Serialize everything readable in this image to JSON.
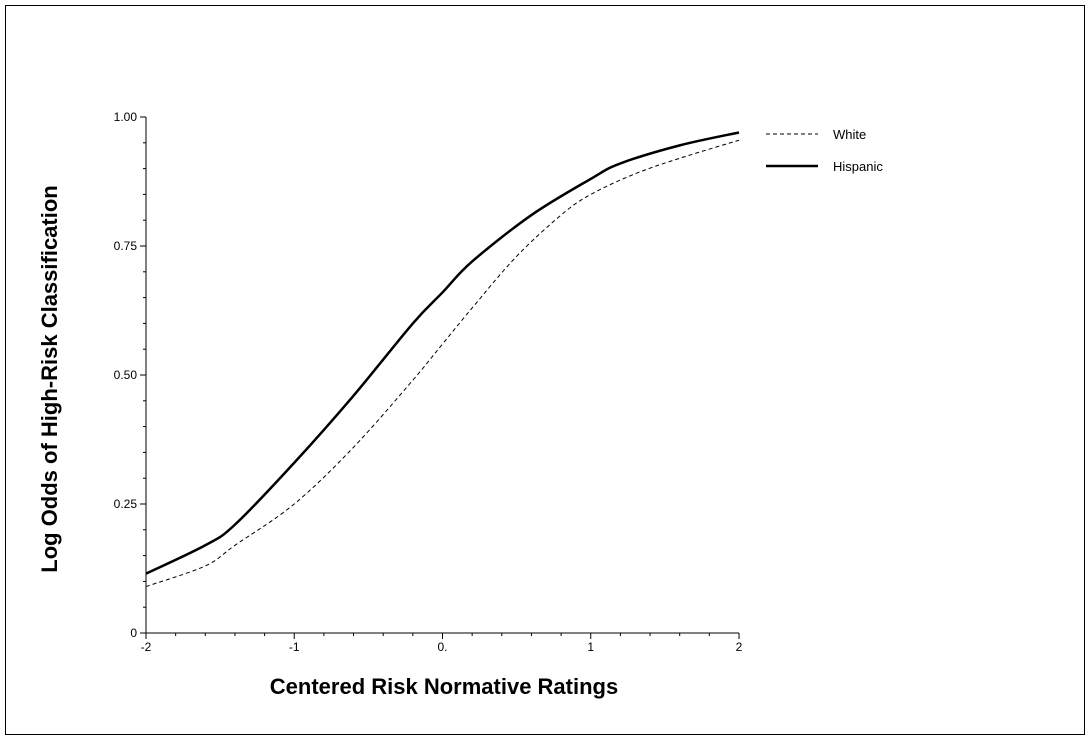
{
  "chart_data": {
    "type": "line",
    "title": "",
    "xlabel": "Centered Risk Normative Ratings",
    "ylabel": "Log Odds of High-Risk Classification",
    "xlim": [
      -2,
      2
    ],
    "ylim": [
      0,
      1
    ],
    "x_ticks": [
      {
        "value": -2,
        "label": "-2"
      },
      {
        "value": -1,
        "label": "-1"
      },
      {
        "value": 0,
        "label": "0."
      },
      {
        "value": 1,
        "label": "1"
      },
      {
        "value": 2,
        "label": "2"
      }
    ],
    "y_ticks": [
      {
        "value": 0,
        "label": "0"
      },
      {
        "value": 0.25,
        "label": "0.25"
      },
      {
        "value": 0.5,
        "label": "0.50"
      },
      {
        "value": 0.75,
        "label": "0.75"
      },
      {
        "value": 1,
        "label": "1.00"
      }
    ],
    "grid": false,
    "legend_position": "top-right",
    "series": [
      {
        "name": "White",
        "style": "dashed",
        "color": "#000000",
        "x": [
          -2.0,
          -1.6,
          -1.4,
          -1.0,
          -0.6,
          -0.2,
          0.0,
          0.2,
          0.5,
          0.8,
          1.0,
          1.3,
          1.6,
          2.0
        ],
        "y": [
          0.09,
          0.13,
          0.17,
          0.25,
          0.36,
          0.49,
          0.56,
          0.63,
          0.73,
          0.81,
          0.85,
          0.89,
          0.92,
          0.955
        ]
      },
      {
        "name": "Hispanic",
        "style": "solid",
        "color": "#000000",
        "x": [
          -2.0,
          -1.6,
          -1.4,
          -1.0,
          -0.6,
          -0.2,
          0.0,
          0.2,
          0.6,
          1.0,
          1.2,
          1.6,
          2.0
        ],
        "y": [
          0.115,
          0.17,
          0.21,
          0.33,
          0.46,
          0.6,
          0.66,
          0.72,
          0.81,
          0.88,
          0.91,
          0.945,
          0.97
        ]
      }
    ]
  }
}
